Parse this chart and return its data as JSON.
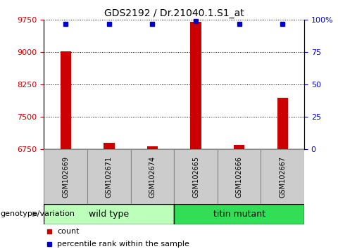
{
  "title": "GDS2192 / Dr.21040.1.S1_at",
  "samples": [
    "GSM102669",
    "GSM102671",
    "GSM102674",
    "GSM102665",
    "GSM102666",
    "GSM102667"
  ],
  "bar_values": [
    9020,
    6910,
    6820,
    9700,
    6860,
    7950
  ],
  "percentile_values": [
    97,
    97,
    97,
    99,
    97,
    97
  ],
  "y_min": 6750,
  "y_max": 9750,
  "y_ticks": [
    6750,
    7500,
    8250,
    9000,
    9750
  ],
  "right_y_ticks": [
    0,
    25,
    50,
    75,
    100
  ],
  "right_y_tick_labels": [
    "0",
    "25",
    "50",
    "75",
    "100%"
  ],
  "bar_color": "#cc0000",
  "percentile_color": "#0000cc",
  "group1_label": "wild type",
  "group2_label": "titin mutant",
  "group1_color": "#bbffbb",
  "group2_color": "#33dd55",
  "group1_indices": [
    0,
    1,
    2
  ],
  "group2_indices": [
    3,
    4,
    5
  ],
  "ylabel_color": "#cc0000",
  "right_ylabel_color": "#0000cc",
  "genotype_label": "genotype/variation",
  "legend_count_label": "count",
  "legend_percentile_label": "percentile rank within the sample",
  "bar_width": 0.25,
  "cell_color": "#cccccc",
  "cell_edge_color": "#888888"
}
